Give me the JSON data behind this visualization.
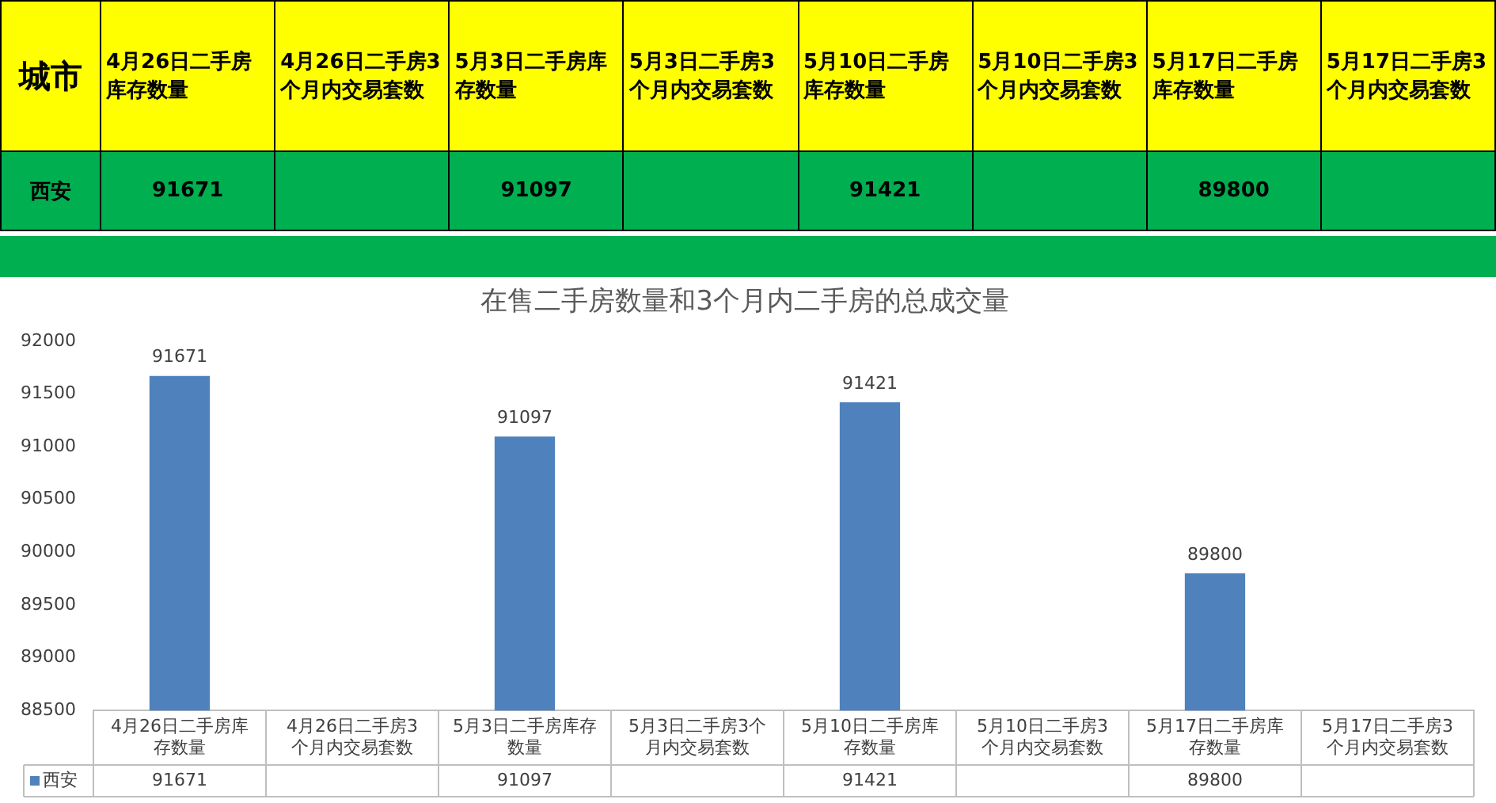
{
  "chart_data": {
    "type": "bar",
    "title": "在售二手房数量和3个月内二手房的总成交量",
    "legend_title": "城市",
    "categories": [
      "4月26日二手房库存数量",
      "4月26日二手房3个月内交易套数",
      "5月3日二手房库存数量",
      "5月3日二手房3个月内交易套数",
      "5月10日二手房库存数量",
      "5月10日二手房3个月内交易套数",
      "5月17日二手房库存数量",
      "5月17日二手房3个月内交易套数"
    ],
    "series": [
      {
        "name": "西安",
        "color": "#4f81bd",
        "values": [
          91671,
          null,
          91097,
          null,
          91421,
          null,
          89800,
          null
        ],
        "value_labels": [
          "91671",
          null,
          "91097",
          null,
          "91421",
          null,
          "89800",
          null
        ]
      }
    ],
    "ylim": [
      88500,
      92000
    ],
    "yticks": [
      {
        "value": 88500,
        "label": "88500"
      },
      {
        "value": 89000,
        "label": "89000"
      },
      {
        "value": 89500,
        "label": "89500"
      },
      {
        "value": 90000,
        "label": "90000"
      },
      {
        "value": 90500,
        "label": "90500"
      },
      {
        "value": 91000,
        "label": "91000"
      },
      {
        "value": 91500,
        "label": "91500"
      },
      {
        "value": 92000,
        "label": "92000"
      }
    ],
    "legend": "bottom",
    "grid": false
  }
}
